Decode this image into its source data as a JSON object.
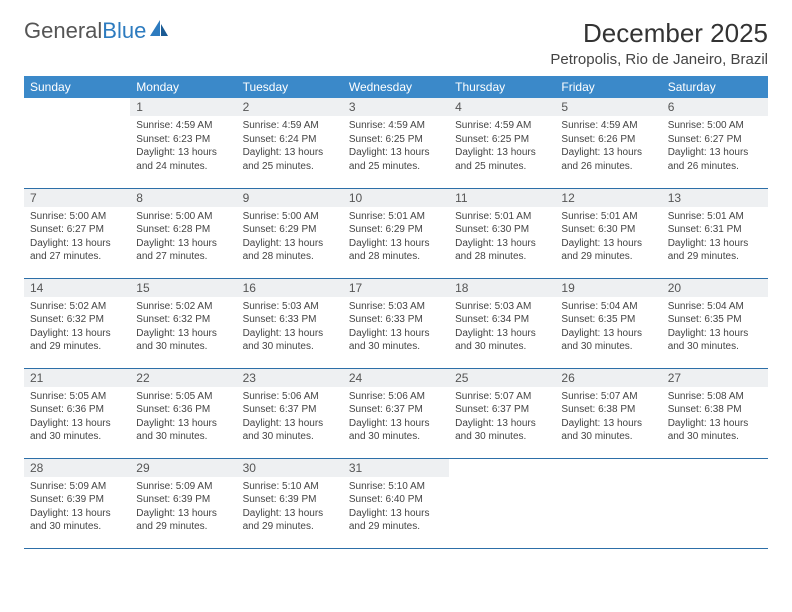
{
  "logo": {
    "text1": "General",
    "text2": "Blue"
  },
  "title": "December 2025",
  "location": "Petropolis, Rio de Janeiro, Brazil",
  "colors": {
    "header_bg": "#3b89c9",
    "header_text": "#ffffff",
    "daynum_bg": "#eef0f2",
    "row_divider": "#2d6fa8",
    "logo_blue": "#2d7bbf",
    "body_text": "#444444"
  },
  "weekdays": [
    "Sunday",
    "Monday",
    "Tuesday",
    "Wednesday",
    "Thursday",
    "Friday",
    "Saturday"
  ],
  "weeks": [
    [
      {
        "day": "",
        "sunrise": "",
        "sunset": "",
        "daylight": ""
      },
      {
        "day": "1",
        "sunrise": "Sunrise: 4:59 AM",
        "sunset": "Sunset: 6:23 PM",
        "daylight": "Daylight: 13 hours and 24 minutes."
      },
      {
        "day": "2",
        "sunrise": "Sunrise: 4:59 AM",
        "sunset": "Sunset: 6:24 PM",
        "daylight": "Daylight: 13 hours and 25 minutes."
      },
      {
        "day": "3",
        "sunrise": "Sunrise: 4:59 AM",
        "sunset": "Sunset: 6:25 PM",
        "daylight": "Daylight: 13 hours and 25 minutes."
      },
      {
        "day": "4",
        "sunrise": "Sunrise: 4:59 AM",
        "sunset": "Sunset: 6:25 PM",
        "daylight": "Daylight: 13 hours and 25 minutes."
      },
      {
        "day": "5",
        "sunrise": "Sunrise: 4:59 AM",
        "sunset": "Sunset: 6:26 PM",
        "daylight": "Daylight: 13 hours and 26 minutes."
      },
      {
        "day": "6",
        "sunrise": "Sunrise: 5:00 AM",
        "sunset": "Sunset: 6:27 PM",
        "daylight": "Daylight: 13 hours and 26 minutes."
      }
    ],
    [
      {
        "day": "7",
        "sunrise": "Sunrise: 5:00 AM",
        "sunset": "Sunset: 6:27 PM",
        "daylight": "Daylight: 13 hours and 27 minutes."
      },
      {
        "day": "8",
        "sunrise": "Sunrise: 5:00 AM",
        "sunset": "Sunset: 6:28 PM",
        "daylight": "Daylight: 13 hours and 27 minutes."
      },
      {
        "day": "9",
        "sunrise": "Sunrise: 5:00 AM",
        "sunset": "Sunset: 6:29 PM",
        "daylight": "Daylight: 13 hours and 28 minutes."
      },
      {
        "day": "10",
        "sunrise": "Sunrise: 5:01 AM",
        "sunset": "Sunset: 6:29 PM",
        "daylight": "Daylight: 13 hours and 28 minutes."
      },
      {
        "day": "11",
        "sunrise": "Sunrise: 5:01 AM",
        "sunset": "Sunset: 6:30 PM",
        "daylight": "Daylight: 13 hours and 28 minutes."
      },
      {
        "day": "12",
        "sunrise": "Sunrise: 5:01 AM",
        "sunset": "Sunset: 6:30 PM",
        "daylight": "Daylight: 13 hours and 29 minutes."
      },
      {
        "day": "13",
        "sunrise": "Sunrise: 5:01 AM",
        "sunset": "Sunset: 6:31 PM",
        "daylight": "Daylight: 13 hours and 29 minutes."
      }
    ],
    [
      {
        "day": "14",
        "sunrise": "Sunrise: 5:02 AM",
        "sunset": "Sunset: 6:32 PM",
        "daylight": "Daylight: 13 hours and 29 minutes."
      },
      {
        "day": "15",
        "sunrise": "Sunrise: 5:02 AM",
        "sunset": "Sunset: 6:32 PM",
        "daylight": "Daylight: 13 hours and 30 minutes."
      },
      {
        "day": "16",
        "sunrise": "Sunrise: 5:03 AM",
        "sunset": "Sunset: 6:33 PM",
        "daylight": "Daylight: 13 hours and 30 minutes."
      },
      {
        "day": "17",
        "sunrise": "Sunrise: 5:03 AM",
        "sunset": "Sunset: 6:33 PM",
        "daylight": "Daylight: 13 hours and 30 minutes."
      },
      {
        "day": "18",
        "sunrise": "Sunrise: 5:03 AM",
        "sunset": "Sunset: 6:34 PM",
        "daylight": "Daylight: 13 hours and 30 minutes."
      },
      {
        "day": "19",
        "sunrise": "Sunrise: 5:04 AM",
        "sunset": "Sunset: 6:35 PM",
        "daylight": "Daylight: 13 hours and 30 minutes."
      },
      {
        "day": "20",
        "sunrise": "Sunrise: 5:04 AM",
        "sunset": "Sunset: 6:35 PM",
        "daylight": "Daylight: 13 hours and 30 minutes."
      }
    ],
    [
      {
        "day": "21",
        "sunrise": "Sunrise: 5:05 AM",
        "sunset": "Sunset: 6:36 PM",
        "daylight": "Daylight: 13 hours and 30 minutes."
      },
      {
        "day": "22",
        "sunrise": "Sunrise: 5:05 AM",
        "sunset": "Sunset: 6:36 PM",
        "daylight": "Daylight: 13 hours and 30 minutes."
      },
      {
        "day": "23",
        "sunrise": "Sunrise: 5:06 AM",
        "sunset": "Sunset: 6:37 PM",
        "daylight": "Daylight: 13 hours and 30 minutes."
      },
      {
        "day": "24",
        "sunrise": "Sunrise: 5:06 AM",
        "sunset": "Sunset: 6:37 PM",
        "daylight": "Daylight: 13 hours and 30 minutes."
      },
      {
        "day": "25",
        "sunrise": "Sunrise: 5:07 AM",
        "sunset": "Sunset: 6:37 PM",
        "daylight": "Daylight: 13 hours and 30 minutes."
      },
      {
        "day": "26",
        "sunrise": "Sunrise: 5:07 AM",
        "sunset": "Sunset: 6:38 PM",
        "daylight": "Daylight: 13 hours and 30 minutes."
      },
      {
        "day": "27",
        "sunrise": "Sunrise: 5:08 AM",
        "sunset": "Sunset: 6:38 PM",
        "daylight": "Daylight: 13 hours and 30 minutes."
      }
    ],
    [
      {
        "day": "28",
        "sunrise": "Sunrise: 5:09 AM",
        "sunset": "Sunset: 6:39 PM",
        "daylight": "Daylight: 13 hours and 30 minutes."
      },
      {
        "day": "29",
        "sunrise": "Sunrise: 5:09 AM",
        "sunset": "Sunset: 6:39 PM",
        "daylight": "Daylight: 13 hours and 29 minutes."
      },
      {
        "day": "30",
        "sunrise": "Sunrise: 5:10 AM",
        "sunset": "Sunset: 6:39 PM",
        "daylight": "Daylight: 13 hours and 29 minutes."
      },
      {
        "day": "31",
        "sunrise": "Sunrise: 5:10 AM",
        "sunset": "Sunset: 6:40 PM",
        "daylight": "Daylight: 13 hours and 29 minutes."
      },
      {
        "day": "",
        "sunrise": "",
        "sunset": "",
        "daylight": ""
      },
      {
        "day": "",
        "sunrise": "",
        "sunset": "",
        "daylight": ""
      },
      {
        "day": "",
        "sunrise": "",
        "sunset": "",
        "daylight": ""
      }
    ]
  ]
}
